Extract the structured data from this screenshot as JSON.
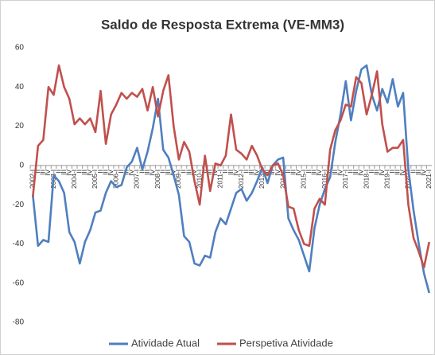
{
  "chart_data": {
    "type": "line",
    "title": "Saldo de Resposta Extrema (VE-MM3)",
    "categories": [
      "2002-I",
      "II",
      "III",
      "IV",
      "2003-I",
      "II",
      "III",
      "IV",
      "2004-I",
      "II",
      "III",
      "IV",
      "2005-I",
      "II",
      "III",
      "IV",
      "2006-I",
      "II",
      "III",
      "IV",
      "2007-I",
      "II",
      "III",
      "IV",
      "2008-I",
      "II",
      "III",
      "IV",
      "2009-I",
      "II",
      "III",
      "IV",
      "2010-I",
      "II",
      "III",
      "IV",
      "2011-I",
      "II",
      "III",
      "IV",
      "2012-I",
      "II",
      "III",
      "IV",
      "2013-I",
      "II",
      "III",
      "IV",
      "2014-I",
      "II",
      "III",
      "IV",
      "2015-I",
      "II",
      "III",
      "IV",
      "2016-I",
      "II",
      "III",
      "IV",
      "2017-I",
      "II",
      "III",
      "IV",
      "2018-I",
      "II",
      "III",
      "IV",
      "2019-I",
      "II",
      "III",
      "IV",
      "2020-I",
      "II",
      "III",
      "IV",
      "2021-I"
    ],
    "series": [
      {
        "name": "Atividade Atual",
        "color": "#4f7fbf",
        "values": [
          -15,
          -41,
          -38,
          -39,
          -5,
          -8,
          -14,
          -34,
          -39,
          -50,
          -39,
          -33,
          -24,
          -23,
          -14,
          -8,
          -11,
          -10,
          -1,
          2,
          9,
          -2,
          7,
          19,
          34,
          8,
          4,
          -5,
          -15,
          -36,
          -39,
          -50,
          -51,
          -46,
          -47,
          -34,
          -27,
          -30,
          -22,
          -14,
          -12,
          -18,
          -14,
          -8,
          -1,
          -9,
          0,
          3,
          4,
          -27,
          -33,
          -38,
          -46,
          -54,
          -32,
          -20,
          -12,
          -6,
          12,
          26,
          43,
          23,
          38,
          49,
          51,
          36,
          28,
          39,
          32,
          44,
          30,
          37,
          -2,
          -23,
          -40,
          -55,
          -65
        ]
      },
      {
        "name": "Perspetiva Atividade",
        "color": "#c0504d",
        "values": [
          -16,
          10,
          13,
          40,
          36,
          51,
          40,
          34,
          21,
          24,
          21,
          24,
          17,
          38,
          11,
          26,
          31,
          37,
          34,
          37,
          35,
          39,
          28,
          40,
          25,
          38,
          46,
          20,
          3,
          12,
          7,
          -8,
          -20,
          5,
          -13,
          1,
          0,
          5,
          26,
          8,
          6,
          3,
          10,
          5,
          -2,
          -5,
          0,
          1,
          -5,
          -21,
          -22,
          -33,
          -40,
          -41,
          -22,
          -17,
          -20,
          8,
          18,
          23,
          31,
          30,
          45,
          42,
          26,
          36,
          48,
          21,
          7,
          9,
          9,
          13,
          -20,
          -37,
          -44,
          -52,
          -39
        ]
      }
    ],
    "ylim": [
      -80,
      60
    ],
    "yticks": [
      60,
      40,
      20,
      0,
      -20,
      -40,
      -60,
      -80
    ],
    "grid": false
  }
}
